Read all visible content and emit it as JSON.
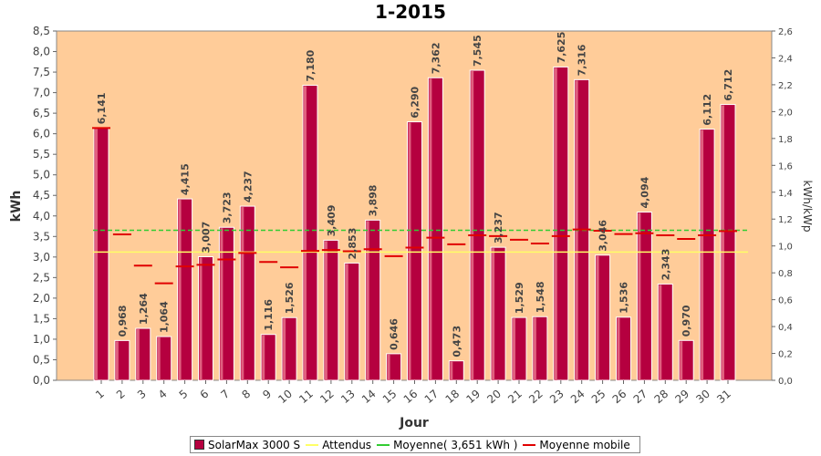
{
  "chart_data": {
    "type": "bar",
    "title": "1-2015",
    "xlabel": "Jour",
    "ylabel": "kWh",
    "y2label": "kWh/kWp",
    "ylim": [
      0,
      8.5
    ],
    "y2lim": [
      0,
      2.6
    ],
    "yticks": [
      "0,0",
      "0,5",
      "1,0",
      "1,5",
      "2,0",
      "2,5",
      "3,0",
      "3,5",
      "4,0",
      "4,5",
      "5,0",
      "5,5",
      "6,0",
      "6,5",
      "7,0",
      "7,5",
      "8,0",
      "8,5"
    ],
    "y2ticks": [
      "0,0",
      "0,2",
      "0,4",
      "0,6",
      "0,8",
      "1,0",
      "1,2",
      "1,4",
      "1,6",
      "1,8",
      "2,0",
      "2,2",
      "2,4",
      "2,6"
    ],
    "categories": [
      "1",
      "2",
      "3",
      "4",
      "5",
      "6",
      "7",
      "8",
      "9",
      "10",
      "11",
      "12",
      "13",
      "14",
      "15",
      "16",
      "17",
      "18",
      "19",
      "20",
      "21",
      "22",
      "23",
      "24",
      "25",
      "26",
      "27",
      "28",
      "29",
      "30",
      "31"
    ],
    "series": [
      {
        "name": "SolarMax 3000 S",
        "type": "bar",
        "color": "#b5003f",
        "values": [
          6.141,
          0.968,
          1.264,
          1.064,
          4.415,
          3.007,
          3.723,
          4.237,
          1.116,
          1.526,
          7.18,
          3.409,
          2.853,
          3.898,
          0.646,
          6.29,
          7.362,
          0.473,
          7.545,
          3.237,
          1.529,
          1.548,
          7.625,
          7.316,
          3.046,
          1.536,
          4.094,
          2.343,
          0.97,
          6.112,
          6.712
        ],
        "labels": [
          "6,141",
          "0,968",
          "1,264",
          "1,064",
          "4,415",
          "3,007",
          "3,723",
          "4,237",
          "1,116",
          "1,526",
          "7,180",
          "3,409",
          "2,853",
          "3,898",
          "0,646",
          "6,290",
          "7,362",
          "0,473",
          "7,545",
          "3,237",
          "1,529",
          "1,548",
          "7,625",
          "7,316",
          "3,046",
          "1,536",
          "4,094",
          "2,343",
          "0,970",
          "6,112",
          "6,712"
        ]
      },
      {
        "name": "Attendus",
        "type": "line",
        "color": "#ffff66",
        "value": 3.12
      },
      {
        "name": "Moyenne( 3,651 kWh )",
        "type": "line",
        "color": "#33cc33",
        "value": 3.651
      },
      {
        "name": "Moyenne mobile",
        "type": "step",
        "color": "#e00000",
        "values": [
          6.14,
          3.55,
          2.79,
          2.36,
          2.77,
          2.81,
          2.94,
          3.1,
          2.88,
          2.75,
          3.15,
          3.17,
          3.14,
          3.19,
          3.02,
          3.23,
          3.47,
          3.31,
          3.53,
          3.51,
          3.42,
          3.33,
          3.51,
          3.67,
          3.64,
          3.56,
          3.58,
          3.53,
          3.44,
          3.53,
          3.63
        ]
      }
    ],
    "legend_position": "bottom",
    "grid": false,
    "plot_background": "#ffcc99"
  }
}
